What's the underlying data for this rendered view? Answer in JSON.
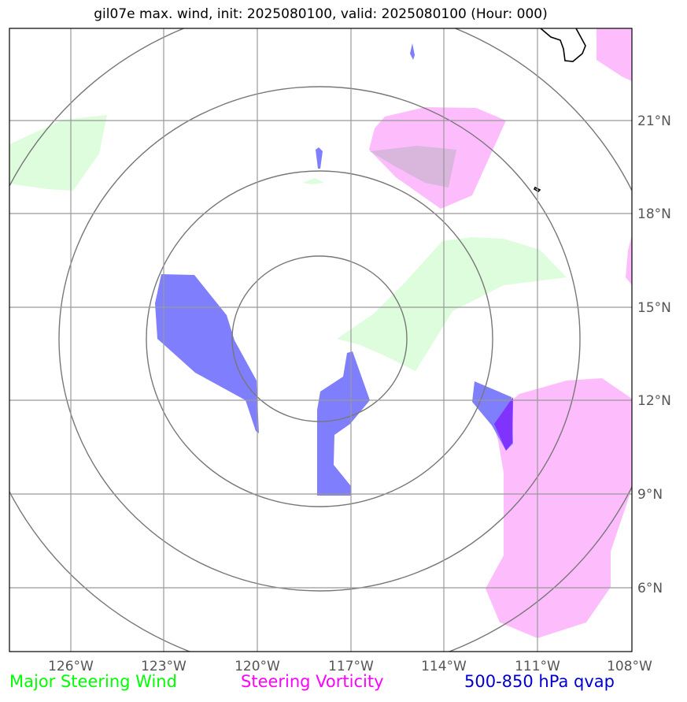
{
  "title": "gil07e max. wind, init: 2025080100, valid: 2025080100 (Hour: 000)",
  "lon_labels": [
    "126°W",
    "123°W",
    "120°W",
    "117°W",
    "114°W",
    "111°W",
    "108°W"
  ],
  "lat_labels": [
    "21°N",
    "18°N",
    "15°N",
    "12°N",
    "9°N",
    "6°N"
  ],
  "legend": {
    "wind": "Major Steering Wind",
    "vorticity": "Steering Vorticity",
    "qvap": "500-850 hPa qvap"
  },
  "colors": {
    "wind": "#00ff00",
    "vorticity": "#ff00ff",
    "qvap": "#0000cc",
    "wind_fill": "#ddfddd",
    "vort_fill": "#fdbdfd",
    "qvap_fill": "#7f7ffd",
    "grid": "#999999",
    "range_ring": "#777777"
  },
  "map": {
    "lon_range": [
      -128,
      -108
    ],
    "lat_range": [
      4,
      24
    ],
    "center": {
      "lon": -117.9,
      "lat": 14.0
    },
    "range_rings": 4
  }
}
